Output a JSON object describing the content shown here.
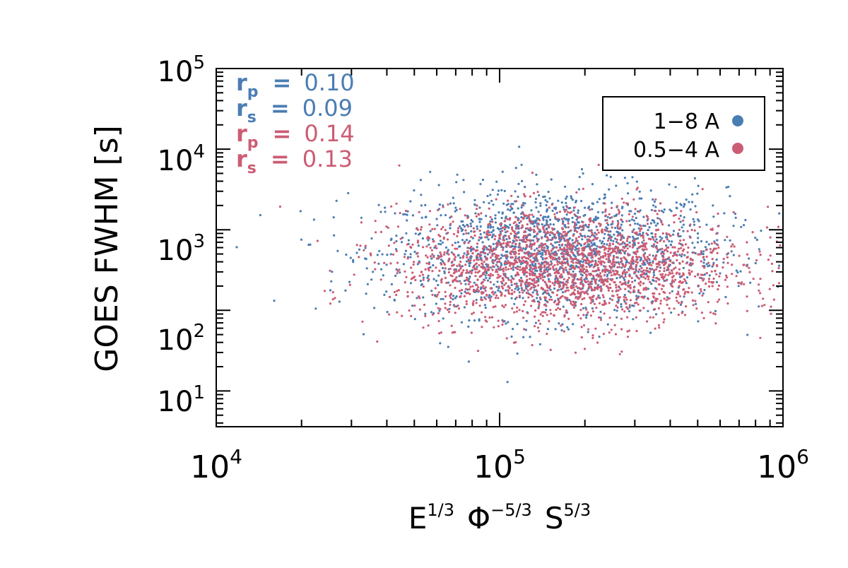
{
  "chart_data": {
    "type": "scatter",
    "title": "",
    "xlabel": {
      "base": "E",
      "base_sup": "1/3",
      "mid": "Φ",
      "mid_sup": "−5/3",
      "end": "S",
      "end_sup": "5/3"
    },
    "ylabel": "GOES FWHM [s]",
    "xscale": "log",
    "yscale": "log",
    "xlim": [
      10000,
      1000000
    ],
    "ylim": [
      3.6,
      100000
    ],
    "x_ticks": [
      {
        "base": "10",
        "exp": "4",
        "value": 10000
      },
      {
        "base": "10",
        "exp": "5",
        "value": 100000
      },
      {
        "base": "10",
        "exp": "6",
        "value": 1000000
      }
    ],
    "y_ticks": [
      {
        "base": "10",
        "exp": "1",
        "value": 10
      },
      {
        "base": "10",
        "exp": "2",
        "value": 100
      },
      {
        "base": "10",
        "exp": "3",
        "value": 1000
      },
      {
        "base": "10",
        "exp": "4",
        "value": 10000
      },
      {
        "base": "10",
        "exp": "5",
        "value": 100000
      }
    ],
    "legend_position": "top-right",
    "series": [
      {
        "name": "1−8 A",
        "color": "#4a7db3",
        "n_points": 1700,
        "center": {
          "log_x": 5.2,
          "log_y": 2.72
        },
        "spread": {
          "log_x": 0.3,
          "log_y": 0.4
        }
      },
      {
        "name": "0.5−4 A",
        "color": "#cc5c74",
        "n_points": 2200,
        "center": {
          "log_x": 5.24,
          "log_y": 2.55
        },
        "spread": {
          "log_x": 0.3,
          "log_y": 0.35
        }
      }
    ],
    "annotations": [
      {
        "label": "r",
        "sub": "p",
        "eq": "=",
        "value": "0.10",
        "color": "#4a7db3"
      },
      {
        "label": "r",
        "sub": "s",
        "eq": "=",
        "value": "0.09",
        "color": "#4a7db3"
      },
      {
        "label": "r",
        "sub": "p",
        "eq": "=",
        "value": "0.14",
        "color": "#cc5c74"
      },
      {
        "label": "r",
        "sub": "s",
        "eq": "=",
        "value": "0.13",
        "color": "#cc5c74"
      }
    ]
  }
}
